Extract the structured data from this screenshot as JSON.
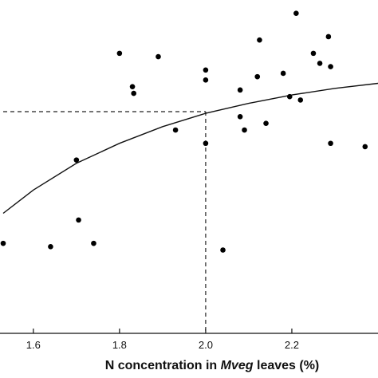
{
  "chart_data": {
    "type": "scatter",
    "xlabel_parts": [
      "N concentration in ",
      "Mveg",
      " leaves (%)"
    ],
    "xlim": [
      1.53,
      2.4
    ],
    "ylim": [
      0,
      1
    ],
    "x_ticks": [
      1.6,
      1.8,
      2.0,
      2.2
    ],
    "x_tick_labels": [
      "1.6",
      "1.8",
      "2.0",
      "2.2"
    ],
    "points": [
      {
        "x": 1.53,
        "y": 0.27
      },
      {
        "x": 1.64,
        "y": 0.26
      },
      {
        "x": 1.7,
        "y": 0.52
      },
      {
        "x": 1.705,
        "y": 0.34
      },
      {
        "x": 1.74,
        "y": 0.27
      },
      {
        "x": 1.8,
        "y": 0.84
      },
      {
        "x": 1.83,
        "y": 0.74
      },
      {
        "x": 1.833,
        "y": 0.72
      },
      {
        "x": 1.89,
        "y": 0.83
      },
      {
        "x": 1.93,
        "y": 0.61
      },
      {
        "x": 2.0,
        "y": 0.79
      },
      {
        "x": 2.0,
        "y": 0.76
      },
      {
        "x": 2.0,
        "y": 0.57
      },
      {
        "x": 2.04,
        "y": 0.25
      },
      {
        "x": 2.08,
        "y": 0.73
      },
      {
        "x": 2.08,
        "y": 0.65
      },
      {
        "x": 2.09,
        "y": 0.61
      },
      {
        "x": 2.12,
        "y": 0.77
      },
      {
        "x": 2.125,
        "y": 0.88
      },
      {
        "x": 2.14,
        "y": 0.63
      },
      {
        "x": 2.18,
        "y": 0.78
      },
      {
        "x": 2.195,
        "y": 0.71
      },
      {
        "x": 2.21,
        "y": 0.96
      },
      {
        "x": 2.22,
        "y": 0.7
      },
      {
        "x": 2.25,
        "y": 0.84
      },
      {
        "x": 2.265,
        "y": 0.81
      },
      {
        "x": 2.285,
        "y": 0.89
      },
      {
        "x": 2.29,
        "y": 0.8
      },
      {
        "x": 2.29,
        "y": 0.57
      },
      {
        "x": 2.37,
        "y": 0.56
      }
    ],
    "fit_curve": {
      "x": [
        1.53,
        1.6,
        1.7,
        1.8,
        1.9,
        2.0,
        2.1,
        2.2,
        2.3,
        2.4
      ],
      "y": [
        0.36,
        0.43,
        0.51,
        0.57,
        0.62,
        0.66,
        0.69,
        0.715,
        0.735,
        0.75
      ]
    },
    "reference_lines": {
      "x": 2.0,
      "y": 0.665
    },
    "grid": false,
    "legend": "none"
  }
}
